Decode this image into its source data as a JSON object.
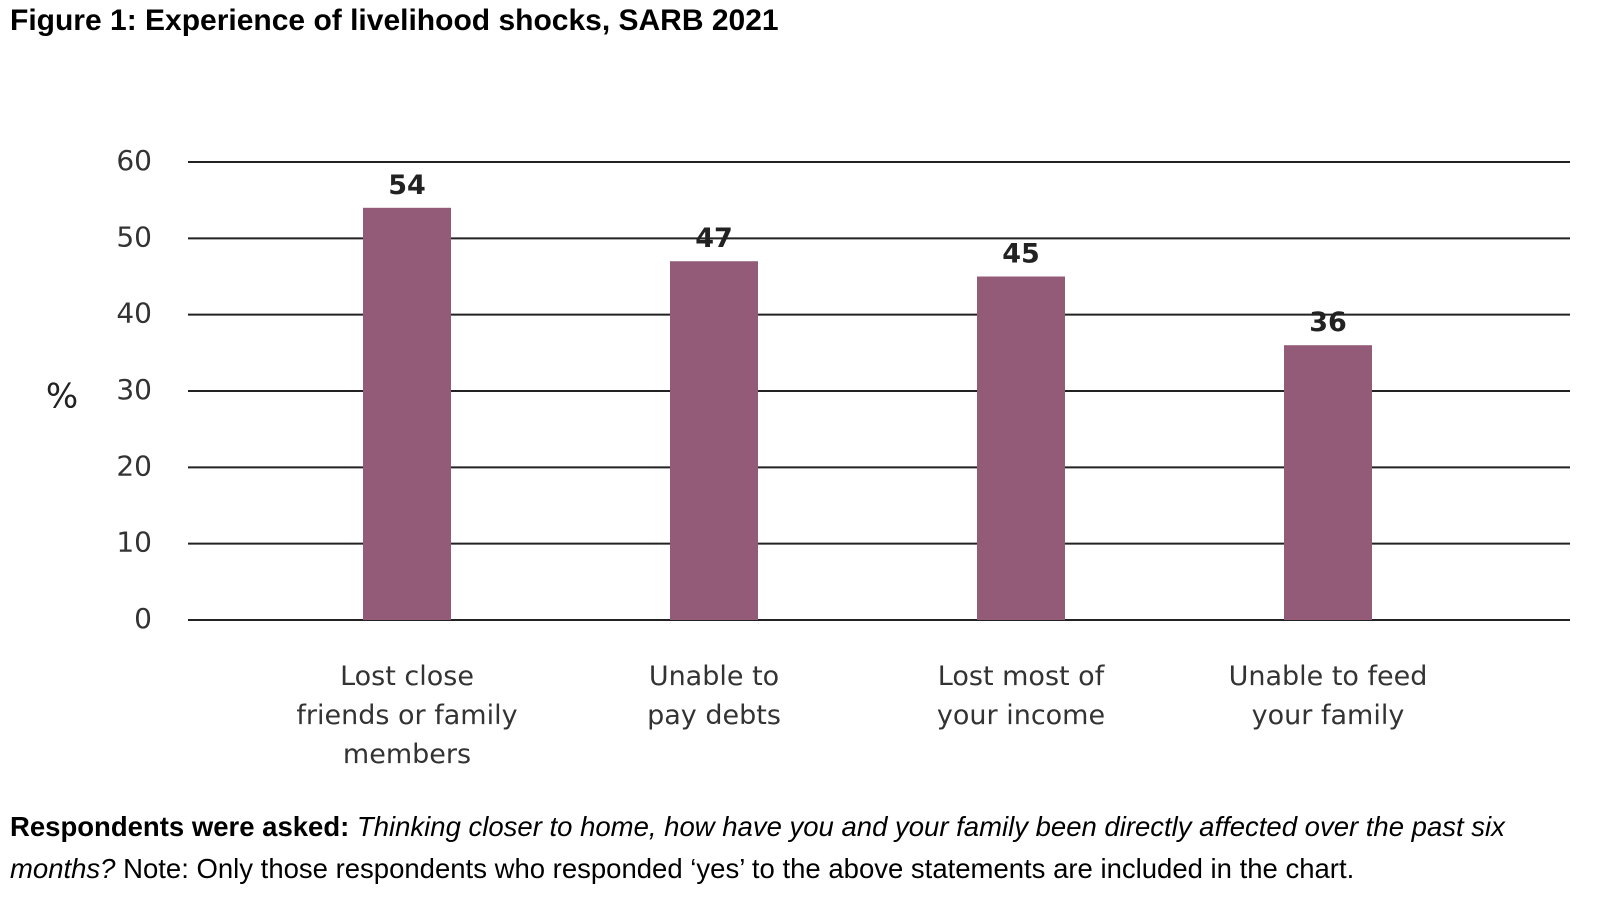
{
  "page": {
    "title": "Figure 1: Experience of livelihood shocks, SARB 2021",
    "note_bold": "Respondents were asked:",
    "note_italic": "Thinking closer to home, how have you and your family been directly affected over the past six months?",
    "note_rest": "Note: Only those respondents who responded ‘yes’ to the above statements are included in the chart."
  },
  "chart_data": {
    "type": "bar",
    "title": "Figure 1: Experience of livelihood shocks, SARB 2021",
    "ylabel": "%",
    "xlabel": "",
    "ylim": [
      0,
      60
    ],
    "yticks": [
      0,
      10,
      20,
      30,
      40,
      50,
      60
    ],
    "grid": true,
    "bar_color": "#935b78",
    "categories": [
      [
        "Lost close",
        "friends or family",
        "members"
      ],
      [
        "Unable to",
        "pay debts"
      ],
      [
        "Lost most of",
        "your income"
      ],
      [
        "Unable to feed",
        "your family"
      ]
    ],
    "values": [
      54,
      47,
      45,
      36
    ],
    "data_labels": [
      "54",
      "47",
      "45",
      "36"
    ]
  }
}
